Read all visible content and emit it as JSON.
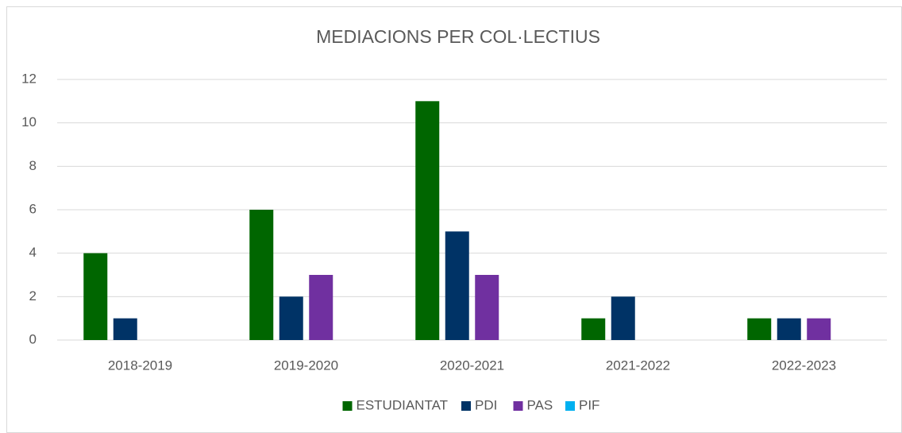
{
  "chart_data": {
    "type": "bar",
    "title": "MEDIACIONS PER COL·LECTIUS",
    "categories": [
      "2018-2019",
      "2019-2020",
      "2020-2021",
      "2021-2022",
      "2022-2023"
    ],
    "series": [
      {
        "name": "ESTUDIANTAT",
        "color": "#006600",
        "values": [
          4,
          6,
          11,
          1,
          1
        ]
      },
      {
        "name": "PDI",
        "color": "#003366",
        "values": [
          1,
          2,
          5,
          2,
          1
        ]
      },
      {
        "name": "PAS",
        "color": "#7030a0",
        "values": [
          0,
          3,
          3,
          0,
          1
        ]
      },
      {
        "name": "PIF",
        "color": "#00b0f0",
        "values": [
          0,
          0,
          0,
          0,
          0
        ]
      }
    ],
    "ylim": [
      0,
      12
    ],
    "yticks": [
      0,
      2,
      4,
      6,
      8,
      10,
      12
    ],
    "grid": true,
    "legend": "bottom"
  }
}
